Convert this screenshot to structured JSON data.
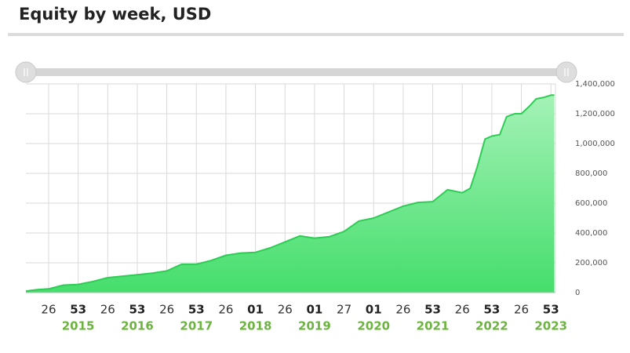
{
  "chart_data": {
    "type": "area",
    "title": "Equity by week, USD",
    "color": "#2ecc55",
    "grid": true,
    "x": [
      0,
      10,
      20,
      33,
      46,
      59,
      72,
      85,
      98,
      111,
      124,
      137,
      150,
      163,
      176,
      189,
      202,
      215,
      228,
      241,
      254,
      267,
      280,
      293,
      306,
      319,
      332,
      345,
      358,
      371,
      384,
      391,
      397,
      404,
      410,
      417,
      423,
      430,
      436,
      443,
      449,
      456,
      462,
      465
    ],
    "values": [
      10000,
      20000,
      25000,
      50000,
      55000,
      75000,
      100000,
      110000,
      120000,
      130000,
      145000,
      190000,
      190000,
      215000,
      250000,
      265000,
      270000,
      300000,
      340000,
      380000,
      365000,
      375000,
      410000,
      480000,
      500000,
      540000,
      580000,
      605000,
      610000,
      690000,
      670000,
      700000,
      840000,
      1030000,
      1050000,
      1060000,
      1180000,
      1200000,
      1200000,
      1250000,
      1300000,
      1310000,
      1325000,
      1325000
    ],
    "xlim": [
      0,
      466
    ],
    "xticks": [
      {
        "value": 20,
        "label": "26"
      },
      {
        "value": 46,
        "label": "53"
      },
      {
        "value": 72,
        "label": "26"
      },
      {
        "value": 98,
        "label": "53"
      },
      {
        "value": 124,
        "label": "26"
      },
      {
        "value": 150,
        "label": "53"
      },
      {
        "value": 176,
        "label": "26"
      },
      {
        "value": 202,
        "label": "01"
      },
      {
        "value": 228,
        "label": "26"
      },
      {
        "value": 254,
        "label": "01"
      },
      {
        "value": 280,
        "label": "27"
      },
      {
        "value": 306,
        "label": "01"
      },
      {
        "value": 332,
        "label": "26"
      },
      {
        "value": 358,
        "label": "53"
      },
      {
        "value": 384,
        "label": "26"
      },
      {
        "value": 410,
        "label": "53"
      },
      {
        "value": 436,
        "label": "26"
      },
      {
        "value": 462,
        "label": "53"
      }
    ],
    "x_groups": [
      {
        "value": 46,
        "label": "2015"
      },
      {
        "value": 98,
        "label": "2016"
      },
      {
        "value": 150,
        "label": "2017"
      },
      {
        "value": 202,
        "label": "2018"
      },
      {
        "value": 254,
        "label": "2019"
      },
      {
        "value": 306,
        "label": "2020"
      },
      {
        "value": 358,
        "label": "2021"
      },
      {
        "value": 410,
        "label": "2022"
      },
      {
        "value": 462,
        "label": "2023"
      }
    ],
    "ylim": [
      0,
      1400000
    ],
    "yticks": [
      0,
      {
        "value": 200000,
        "label": "200,000"
      },
      {
        "value": 400000,
        "label": "400,000"
      },
      {
        "value": 600000,
        "label": "600,000"
      },
      {
        "value": 800000,
        "label": "800,000"
      },
      {
        "value": 1000000,
        "label": "1,000,000"
      },
      {
        "value": 1200000,
        "label": "1,200,000"
      },
      {
        "value": 1400000,
        "label": "1,400,000"
      }
    ]
  }
}
